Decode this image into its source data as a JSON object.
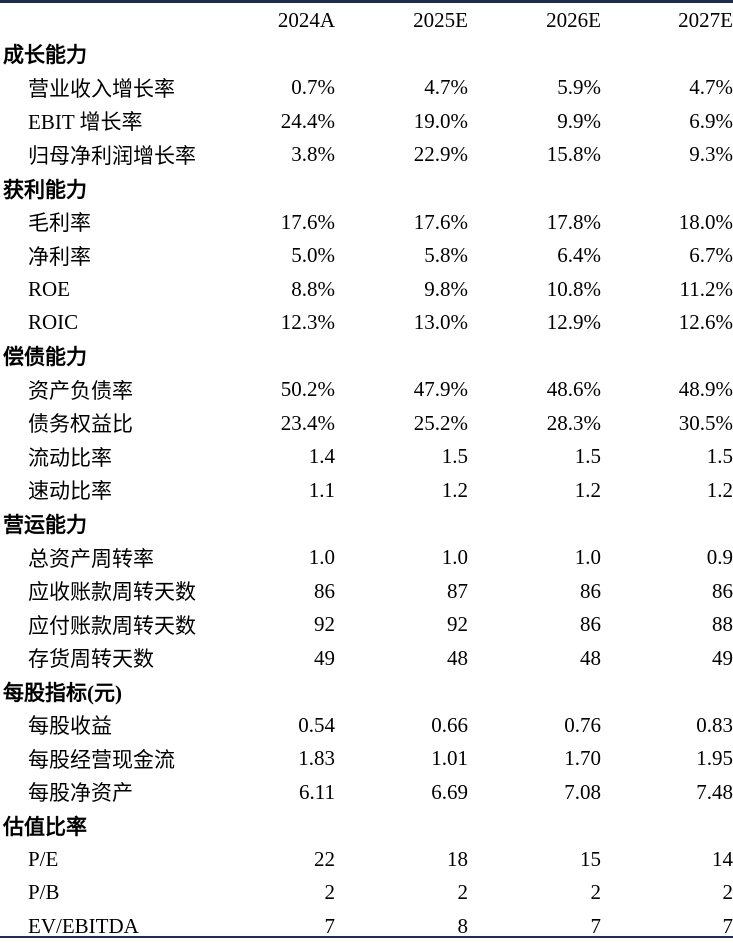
{
  "columns": [
    "2024A",
    "2025E",
    "2026E",
    "2027E"
  ],
  "sections": [
    {
      "title": "成长能力",
      "rows": [
        {
          "label": "营业收入增长率",
          "values": [
            "0.7%",
            "4.7%",
            "5.9%",
            "4.7%"
          ]
        },
        {
          "label": "EBIT 增长率",
          "values": [
            "24.4%",
            "19.0%",
            "9.9%",
            "6.9%"
          ]
        },
        {
          "label": "归母净利润增长率",
          "values": [
            "3.8%",
            "22.9%",
            "15.8%",
            "9.3%"
          ]
        }
      ]
    },
    {
      "title": "获利能力",
      "rows": [
        {
          "label": "毛利率",
          "values": [
            "17.6%",
            "17.6%",
            "17.8%",
            "18.0%"
          ]
        },
        {
          "label": "净利率",
          "values": [
            "5.0%",
            "5.8%",
            "6.4%",
            "6.7%"
          ]
        },
        {
          "label": "ROE",
          "values": [
            "8.8%",
            "9.8%",
            "10.8%",
            "11.2%"
          ]
        },
        {
          "label": "ROIC",
          "values": [
            "12.3%",
            "13.0%",
            "12.9%",
            "12.6%"
          ]
        }
      ]
    },
    {
      "title": "偿债能力",
      "rows": [
        {
          "label": "资产负债率",
          "values": [
            "50.2%",
            "47.9%",
            "48.6%",
            "48.9%"
          ]
        },
        {
          "label": "债务权益比",
          "values": [
            "23.4%",
            "25.2%",
            "28.3%",
            "30.5%"
          ]
        },
        {
          "label": "流动比率",
          "values": [
            "1.4",
            "1.5",
            "1.5",
            "1.5"
          ]
        },
        {
          "label": "速动比率",
          "values": [
            "1.1",
            "1.2",
            "1.2",
            "1.2"
          ]
        }
      ]
    },
    {
      "title": "营运能力",
      "rows": [
        {
          "label": "总资产周转率",
          "values": [
            "1.0",
            "1.0",
            "1.0",
            "0.9"
          ]
        },
        {
          "label": "应收账款周转天数",
          "values": [
            "86",
            "87",
            "86",
            "86"
          ]
        },
        {
          "label": "应付账款周转天数",
          "values": [
            "92",
            "92",
            "86",
            "88"
          ]
        },
        {
          "label": "存货周转天数",
          "values": [
            "49",
            "48",
            "48",
            "49"
          ]
        }
      ]
    },
    {
      "title": "每股指标(元)",
      "rows": [
        {
          "label": "每股收益",
          "values": [
            "0.54",
            "0.66",
            "0.76",
            "0.83"
          ]
        },
        {
          "label": "每股经营现金流",
          "values": [
            "1.83",
            "1.01",
            "1.70",
            "1.95"
          ]
        },
        {
          "label": "每股净资产",
          "values": [
            "6.11",
            "6.69",
            "7.08",
            "7.48"
          ]
        }
      ]
    },
    {
      "title": "估值比率",
      "rows": [
        {
          "label": "P/E",
          "values": [
            "22",
            "18",
            "15",
            "14"
          ]
        },
        {
          "label": "P/B",
          "values": [
            "2",
            "2",
            "2",
            "2"
          ]
        },
        {
          "label": "EV/EBITDA",
          "values": [
            "7",
            "8",
            "7",
            "7"
          ]
        }
      ]
    }
  ]
}
